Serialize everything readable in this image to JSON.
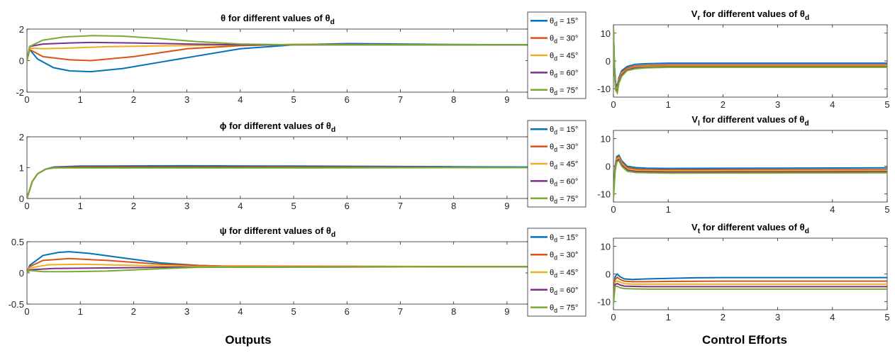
{
  "captions": {
    "outputs": "Outputs",
    "efforts": "Control Efforts"
  },
  "colors": {
    "s15": "#0072BD",
    "s30": "#D95319",
    "s45": "#EDB120",
    "s60": "#7E2F8E",
    "s75": "#77AC30"
  },
  "chart_data": [
    {
      "type": "line",
      "title": "θ for different values of θd",
      "xlim": [
        0,
        9.4
      ],
      "ylim": [
        -2,
        2
      ],
      "xticks": [
        0,
        1,
        2,
        3,
        4,
        5,
        6,
        7,
        8,
        9
      ],
      "yticks": [
        -2,
        0,
        2
      ],
      "legend": "outside-right",
      "series": [
        {
          "name": "θd = 15°",
          "x": [
            0,
            0.05,
            0.2,
            0.5,
            0.8,
            1.2,
            1.8,
            2.5,
            3.2,
            4,
            5,
            6,
            8,
            9.4
          ],
          "y": [
            0,
            0.7,
            0.1,
            -0.45,
            -0.65,
            -0.7,
            -0.5,
            -0.1,
            0.3,
            0.75,
            1.0,
            1.08,
            1.02,
            1.0
          ]
        },
        {
          "name": "θd = 30°",
          "x": [
            0,
            0.05,
            0.3,
            0.8,
            1.2,
            2,
            3,
            4,
            5,
            6,
            8,
            9.4
          ],
          "y": [
            0,
            0.7,
            0.25,
            0.05,
            0.0,
            0.25,
            0.75,
            0.95,
            1.03,
            1.02,
            1.0,
            1.0
          ]
        },
        {
          "name": "θd = 45°",
          "x": [
            0,
            0.05,
            0.3,
            0.8,
            1.5,
            2.5,
            3.5,
            4.5,
            6,
            9.4
          ],
          "y": [
            0,
            0.8,
            0.75,
            0.8,
            0.88,
            0.93,
            0.98,
            1.0,
            1.0,
            1.0
          ]
        },
        {
          "name": "θd = 60°",
          "x": [
            0,
            0.05,
            0.3,
            0.8,
            1.2,
            2,
            3,
            4,
            5,
            9.4
          ],
          "y": [
            0,
            0.9,
            1.05,
            1.12,
            1.15,
            1.12,
            1.05,
            1.0,
            1.0,
            1.0
          ]
        },
        {
          "name": "θd = 75°",
          "x": [
            0,
            0.05,
            0.3,
            0.7,
            1.2,
            1.8,
            2.5,
            3.2,
            4,
            5,
            9.4
          ],
          "y": [
            0,
            0.9,
            1.3,
            1.5,
            1.58,
            1.55,
            1.4,
            1.2,
            1.05,
            1.0,
            1.0
          ]
        }
      ]
    },
    {
      "type": "line",
      "title": "ϕ for different values of θd",
      "xlim": [
        0,
        9.4
      ],
      "ylim": [
        0,
        2
      ],
      "xticks": [
        0,
        1,
        2,
        3,
        4,
        5,
        6,
        7,
        8,
        9
      ],
      "yticks": [
        0,
        1,
        2
      ],
      "legend": "outside-right",
      "series": [
        {
          "name": "θd = 15°",
          "x": [
            0,
            0.1,
            0.2,
            0.35,
            0.5,
            1,
            3,
            5,
            8,
            9.4
          ],
          "y": [
            0,
            0.55,
            0.8,
            0.95,
            1.02,
            1.05,
            1.06,
            1.05,
            1.03,
            1.02
          ]
        },
        {
          "name": "θd = 30°",
          "x": [
            0,
            0.1,
            0.2,
            0.35,
            0.5,
            1,
            3,
            5,
            8,
            9.4
          ],
          "y": [
            0,
            0.55,
            0.8,
            0.95,
            1.01,
            1.03,
            1.03,
            1.02,
            1.01,
            1.0
          ]
        },
        {
          "name": "θd = 45°",
          "x": [
            0,
            0.1,
            0.2,
            0.35,
            0.5,
            1,
            3,
            5,
            8,
            9.4
          ],
          "y": [
            0,
            0.55,
            0.8,
            0.95,
            1.0,
            1.0,
            1.0,
            1.0,
            1.0,
            1.0
          ]
        },
        {
          "name": "θd = 60°",
          "x": [
            0,
            0.1,
            0.2,
            0.35,
            0.5,
            1,
            3,
            5,
            8,
            9.4
          ],
          "y": [
            0,
            0.55,
            0.8,
            0.95,
            1.0,
            1.01,
            1.01,
            1.0,
            1.0,
            1.0
          ]
        },
        {
          "name": "θd = 75°",
          "x": [
            0,
            0.1,
            0.2,
            0.35,
            0.5,
            1,
            3,
            5,
            8,
            9.4
          ],
          "y": [
            0,
            0.55,
            0.8,
            0.95,
            0.99,
            0.99,
            0.99,
            0.99,
            1.0,
            1.0
          ]
        }
      ]
    },
    {
      "type": "line",
      "title": "ψ for different values of θd",
      "xlim": [
        0,
        9.4
      ],
      "ylim": [
        -0.5,
        0.5
      ],
      "xticks": [
        0,
        1,
        2,
        3,
        4,
        5,
        6,
        7,
        8,
        9
      ],
      "yticks": [
        -0.5,
        0,
        0.5
      ],
      "legend": "outside-right",
      "series": [
        {
          "name": "θd = 15°",
          "x": [
            0,
            0.05,
            0.3,
            0.6,
            0.8,
            1.2,
            1.8,
            2.5,
            3.2,
            4,
            9.4
          ],
          "y": [
            0,
            0.12,
            0.28,
            0.33,
            0.34,
            0.31,
            0.24,
            0.16,
            0.12,
            0.1,
            0.1
          ]
        },
        {
          "name": "θd = 30°",
          "x": [
            0,
            0.05,
            0.3,
            0.8,
            1.5,
            2.5,
            3.5,
            9.4
          ],
          "y": [
            0,
            0.1,
            0.2,
            0.23,
            0.2,
            0.14,
            0.11,
            0.1
          ]
        },
        {
          "name": "θd = 45°",
          "x": [
            0,
            0.05,
            0.4,
            1,
            2,
            3,
            9.4
          ],
          "y": [
            0,
            0.08,
            0.13,
            0.14,
            0.12,
            0.1,
            0.1
          ]
        },
        {
          "name": "θd = 60°",
          "x": [
            0,
            0.05,
            0.5,
            1.5,
            2.5,
            9.4
          ],
          "y": [
            0,
            0.05,
            0.07,
            0.08,
            0.09,
            0.1
          ]
        },
        {
          "name": "θd = 75°",
          "x": [
            0,
            0.05,
            0.3,
            0.8,
            1.5,
            2.3,
            3.2,
            9.4
          ],
          "y": [
            0,
            0.04,
            0.02,
            0.02,
            0.03,
            0.06,
            0.09,
            0.1
          ]
        }
      ]
    },
    {
      "type": "line",
      "title": "Vr for different values of θd",
      "xlim": [
        0,
        5
      ],
      "ylim": [
        -13,
        13
      ],
      "xticks": [
        0,
        1,
        2,
        3,
        4,
        5
      ],
      "yticks": [
        -10,
        0,
        10
      ],
      "series": [
        {
          "name": "θd = 15°",
          "x": [
            0,
            0.02,
            0.04,
            0.07,
            0.1,
            0.15,
            0.25,
            0.4,
            0.6,
            1,
            5
          ],
          "y": [
            10,
            -2,
            -8,
            -9,
            -6,
            -3.5,
            -2,
            -1.2,
            -1,
            -0.8,
            -0.8
          ]
        },
        {
          "name": "θd = 30°",
          "x": [
            0,
            0.02,
            0.04,
            0.07,
            0.1,
            0.15,
            0.25,
            0.4,
            0.6,
            1,
            5
          ],
          "y": [
            11,
            -3,
            -9,
            -10,
            -6.5,
            -4,
            -2.5,
            -1.8,
            -1.6,
            -1.4,
            -1.4
          ]
        },
        {
          "name": "θd = 45°",
          "x": [
            0,
            0.02,
            0.04,
            0.07,
            0.1,
            0.15,
            0.25,
            0.4,
            0.6,
            1,
            5
          ],
          "y": [
            11.5,
            -3.5,
            -9.5,
            -10.5,
            -7,
            -4.5,
            -3,
            -2.2,
            -2,
            -1.8,
            -1.8
          ]
        },
        {
          "name": "θd = 60°",
          "x": [
            0,
            0.02,
            0.04,
            0.07,
            0.1,
            0.15,
            0.25,
            0.4,
            0.6,
            1,
            5
          ],
          "y": [
            12,
            -4,
            -10,
            -11,
            -7.5,
            -5,
            -3.2,
            -2.5,
            -2.3,
            -2.1,
            -2.1
          ]
        },
        {
          "name": "θd = 75°",
          "x": [
            0,
            0.02,
            0.04,
            0.07,
            0.1,
            0.15,
            0.25,
            0.4,
            0.6,
            1,
            5
          ],
          "y": [
            12.5,
            -4.5,
            -10.5,
            -11.5,
            -8,
            -5.5,
            -3.5,
            -2.8,
            -2.5,
            -2.3,
            -2.3
          ]
        }
      ]
    },
    {
      "type": "line",
      "title": "Vl for different values of θd",
      "xlim": [
        0,
        5
      ],
      "ylim": [
        -13,
        13
      ],
      "xticks": [
        0,
        1,
        4,
        5
      ],
      "yticks": [
        -10,
        0,
        10
      ],
      "series": [
        {
          "name": "θd = 15°",
          "x": [
            0,
            0.03,
            0.06,
            0.1,
            0.15,
            0.25,
            0.4,
            0.6,
            1,
            5
          ],
          "y": [
            -10,
            0,
            3.5,
            4,
            2,
            0,
            -0.5,
            -0.7,
            -0.8,
            -0.6
          ]
        },
        {
          "name": "θd = 30°",
          "x": [
            0,
            0.03,
            0.06,
            0.1,
            0.15,
            0.25,
            0.4,
            0.6,
            1,
            5
          ],
          "y": [
            -10.5,
            -0.5,
            3,
            3.5,
            1.5,
            -0.5,
            -1,
            -1.2,
            -1.3,
            -1.2
          ]
        },
        {
          "name": "θd = 45°",
          "x": [
            0,
            0.03,
            0.06,
            0.1,
            0.15,
            0.25,
            0.4,
            0.6,
            1,
            5
          ],
          "y": [
            -11,
            -1,
            2.5,
            3,
            1,
            -1,
            -1.5,
            -1.6,
            -1.7,
            -1.6
          ]
        },
        {
          "name": "θd = 60°",
          "x": [
            0,
            0.03,
            0.06,
            0.1,
            0.15,
            0.25,
            0.4,
            0.6,
            1,
            5
          ],
          "y": [
            -11.5,
            -1.5,
            2,
            2.5,
            0.5,
            -1.4,
            -1.9,
            -2,
            -2.1,
            -2
          ]
        },
        {
          "name": "θd = 75°",
          "x": [
            0,
            0.03,
            0.06,
            0.1,
            0.15,
            0.25,
            0.4,
            0.6,
            1,
            5
          ],
          "y": [
            -12,
            -2,
            1.5,
            2,
            0,
            -1.8,
            -2.3,
            -2.4,
            -2.5,
            -2.4
          ]
        }
      ]
    },
    {
      "type": "line",
      "title": "Vt for different values of θd",
      "xlim": [
        0,
        5
      ],
      "ylim": [
        -13,
        13
      ],
      "xticks": [
        0,
        1,
        2,
        3,
        4,
        5
      ],
      "yticks": [
        -10,
        0,
        10
      ],
      "series": [
        {
          "name": "θd = 15°",
          "x": [
            0,
            0.03,
            0.07,
            0.12,
            0.2,
            0.35,
            0.6,
            1,
            1.5,
            2,
            5
          ],
          "y": [
            -8,
            -1,
            0,
            -1,
            -1.8,
            -2,
            -1.8,
            -1.6,
            -1.4,
            -1.3,
            -1.3
          ]
        },
        {
          "name": "θd = 30°",
          "x": [
            0,
            0.03,
            0.07,
            0.12,
            0.2,
            0.35,
            0.6,
            1,
            2,
            5
          ],
          "y": [
            -9,
            -2,
            -1.2,
            -2,
            -2.6,
            -2.8,
            -2.8,
            -2.7,
            -2.6,
            -2.6
          ]
        },
        {
          "name": "θd = 45°",
          "x": [
            0,
            0.03,
            0.07,
            0.12,
            0.2,
            0.35,
            0.6,
            1,
            2,
            5
          ],
          "y": [
            -10,
            -3,
            -2.5,
            -3,
            -3.5,
            -3.7,
            -3.7,
            -3.7,
            -3.7,
            -3.7
          ]
        },
        {
          "name": "θd = 60°",
          "x": [
            0,
            0.03,
            0.07,
            0.12,
            0.2,
            0.35,
            0.6,
            1,
            2,
            5
          ],
          "y": [
            -10.5,
            -3.8,
            -3.5,
            -4,
            -4.4,
            -4.5,
            -4.6,
            -4.6,
            -4.6,
            -4.6
          ]
        },
        {
          "name": "θd = 75°",
          "x": [
            0,
            0.03,
            0.07,
            0.12,
            0.2,
            0.35,
            0.6,
            1,
            2,
            5
          ],
          "y": [
            -11,
            -4.5,
            -4.5,
            -5,
            -5.3,
            -5.4,
            -5.5,
            -5.5,
            -5.5,
            -5.5
          ]
        }
      ]
    }
  ]
}
